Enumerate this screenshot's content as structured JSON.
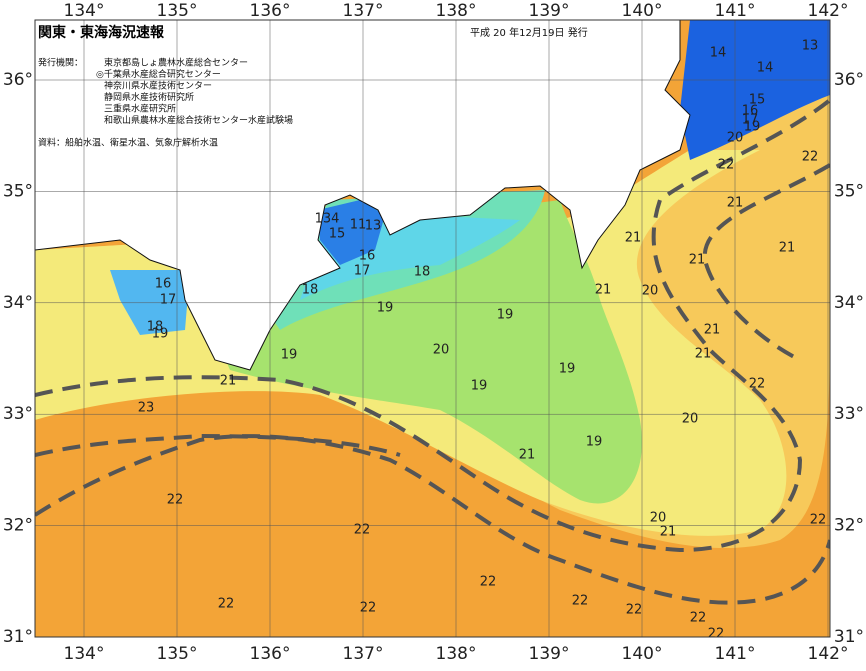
{
  "header": {
    "title": "関東・東海海況速報",
    "date": "平成 20 年12月19日 発行",
    "issuer_label": "発行機関：",
    "issuers": [
      "東京都島しょ農林水産総合センター",
      "◎千葉県水産総合研究センター",
      "神奈川県水産技術センター",
      "静岡県水産技術研究所",
      "三重県水産研究所",
      "和歌山県農林水産総合技術センター水産試験場"
    ],
    "source": "資料：船舶水温、衛星水温、気象庁解析水温"
  },
  "map": {
    "lon_ticks": [
      {
        "value": 134,
        "label": "134°"
      },
      {
        "value": 135,
        "label": "135°"
      },
      {
        "value": 136,
        "label": "136°"
      },
      {
        "value": 137,
        "label": "137°"
      },
      {
        "value": 138,
        "label": "138°"
      },
      {
        "value": 139,
        "label": "139°"
      },
      {
        "value": 140,
        "label": "140°"
      },
      {
        "value": 141,
        "label": "141°"
      },
      {
        "value": 142,
        "label": "142°"
      }
    ],
    "lat_ticks": [
      {
        "value": 36,
        "label": "36°"
      },
      {
        "value": 35,
        "label": "35°"
      },
      {
        "value": 34,
        "label": "34°"
      },
      {
        "value": 33,
        "label": "33°"
      },
      {
        "value": 32,
        "label": "32°"
      },
      {
        "value": 31,
        "label": "31°"
      }
    ],
    "contours": [
      14,
      13,
      14,
      15,
      16,
      17,
      19,
      20,
      22,
      22,
      21,
      21,
      21,
      21,
      21,
      20,
      21,
      21,
      22,
      20,
      19,
      19,
      21,
      20,
      21,
      22,
      19,
      19,
      19,
      20,
      19,
      18,
      18,
      17,
      16,
      15,
      134,
      11,
      13,
      16,
      17,
      18,
      19,
      21,
      23,
      22,
      22,
      22,
      22,
      22,
      22,
      22,
      22,
      22
    ]
  }
}
